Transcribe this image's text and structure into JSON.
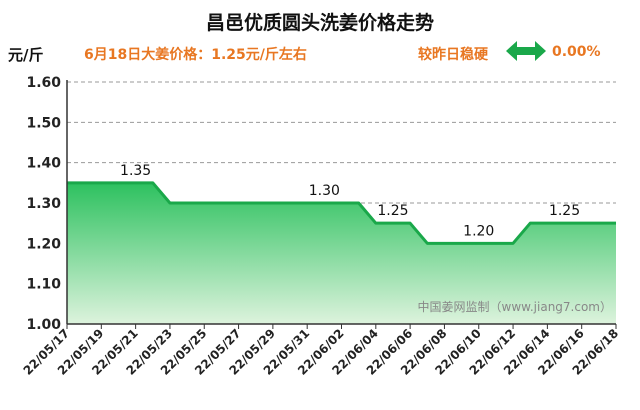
{
  "title": "昌邑优质圆头洗姜价格走势",
  "unit": "元/斤",
  "price_line": "6月18日大姜价格：1.25元/斤左右",
  "compare_label": "较昨日稳硬",
  "change_value": "0.00%",
  "watermark": "中国姜网监制（www.jiang7.com）",
  "colors": {
    "accent": "#E87722",
    "line": "#1AA84A",
    "arrow": "#1AA84A"
  },
  "icons": {
    "change": "left-right-arrow-icon"
  },
  "chart_data": {
    "type": "area",
    "title": "昌邑优质圆头洗姜价格走势",
    "ylabel": "元/斤",
    "ylim": [
      1.0,
      1.6
    ],
    "yticks": [
      "1.00",
      "1.10",
      "1.20",
      "1.30",
      "1.40",
      "1.50",
      "1.60"
    ],
    "xticks": [
      "22/05/17",
      "22/05/19",
      "22/05/21",
      "22/05/23",
      "22/05/25",
      "22/05/27",
      "22/05/29",
      "22/05/31",
      "22/06/02",
      "22/06/04",
      "22/06/06",
      "22/06/08",
      "22/06/10",
      "22/06/12",
      "22/06/14",
      "22/06/16",
      "22/06/18"
    ],
    "x": [
      "22/05/17",
      "22/05/18",
      "22/05/19",
      "22/05/20",
      "22/05/21",
      "22/05/22",
      "22/05/23",
      "22/05/24",
      "22/05/25",
      "22/05/26",
      "22/05/27",
      "22/05/28",
      "22/05/29",
      "22/05/30",
      "22/05/31",
      "22/06/01",
      "22/06/02",
      "22/06/03",
      "22/06/04",
      "22/06/05",
      "22/06/06",
      "22/06/07",
      "22/06/08",
      "22/06/09",
      "22/06/10",
      "22/06/11",
      "22/06/12",
      "22/06/13",
      "22/06/14",
      "22/06/15",
      "22/06/16",
      "22/06/17",
      "22/06/18"
    ],
    "values": [
      1.35,
      1.35,
      1.35,
      1.35,
      1.35,
      1.35,
      1.3,
      1.3,
      1.3,
      1.3,
      1.3,
      1.3,
      1.3,
      1.3,
      1.3,
      1.3,
      1.3,
      1.3,
      1.25,
      1.25,
      1.25,
      1.2,
      1.2,
      1.2,
      1.2,
      1.2,
      1.2,
      1.25,
      1.25,
      1.25,
      1.25,
      1.25,
      1.25
    ],
    "data_labels": [
      {
        "x": "22/05/21",
        "text": "1.35"
      },
      {
        "x": "22/06/01",
        "text": "1.30"
      },
      {
        "x": "22/06/05",
        "text": "1.25"
      },
      {
        "x": "22/06/10",
        "text": "1.20"
      },
      {
        "x": "22/06/15",
        "text": "1.25"
      }
    ],
    "grid": true,
    "legend": "none"
  }
}
